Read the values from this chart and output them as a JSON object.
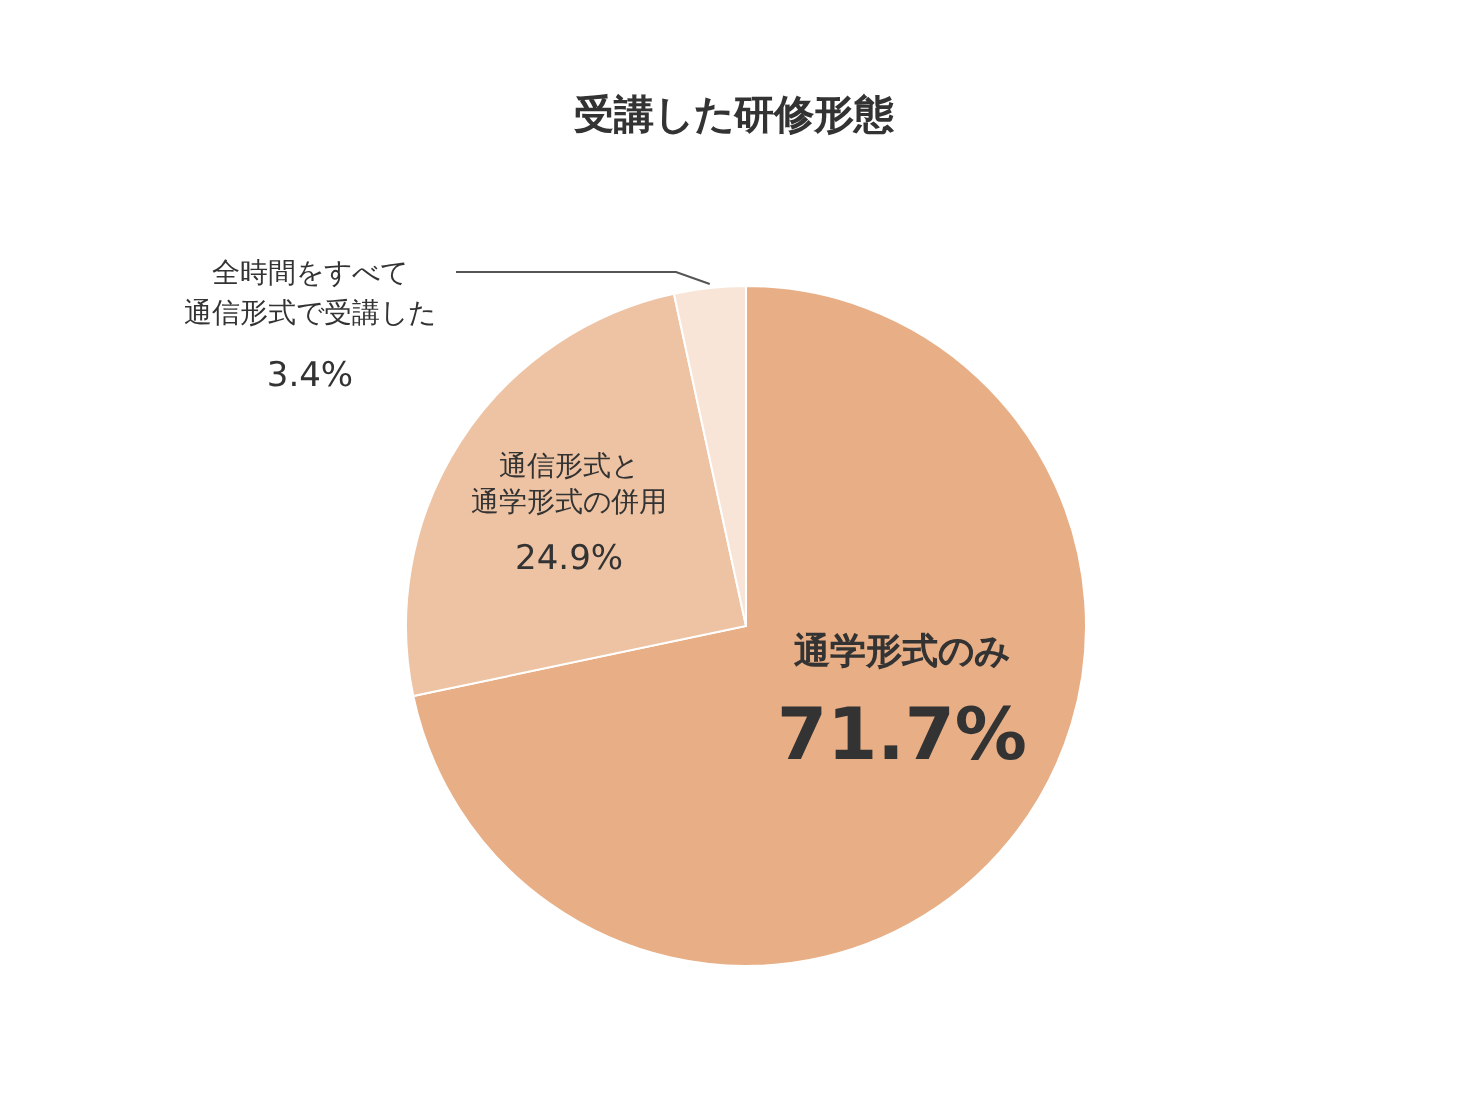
{
  "chart_data": {
    "type": "pie",
    "title": "受講した研修形態",
    "categories": [
      "通学形式のみ",
      "通信形式と通学形式の併用",
      "全時間をすべて通信形式で受講した"
    ],
    "values": [
      71.7,
      24.9,
      3.4
    ],
    "value_labels": [
      "71.7%",
      "24.9%",
      "3.4%"
    ],
    "colors": [
      "#e8ae85",
      "#edc3a3",
      "#f8e5d8"
    ]
  }
}
